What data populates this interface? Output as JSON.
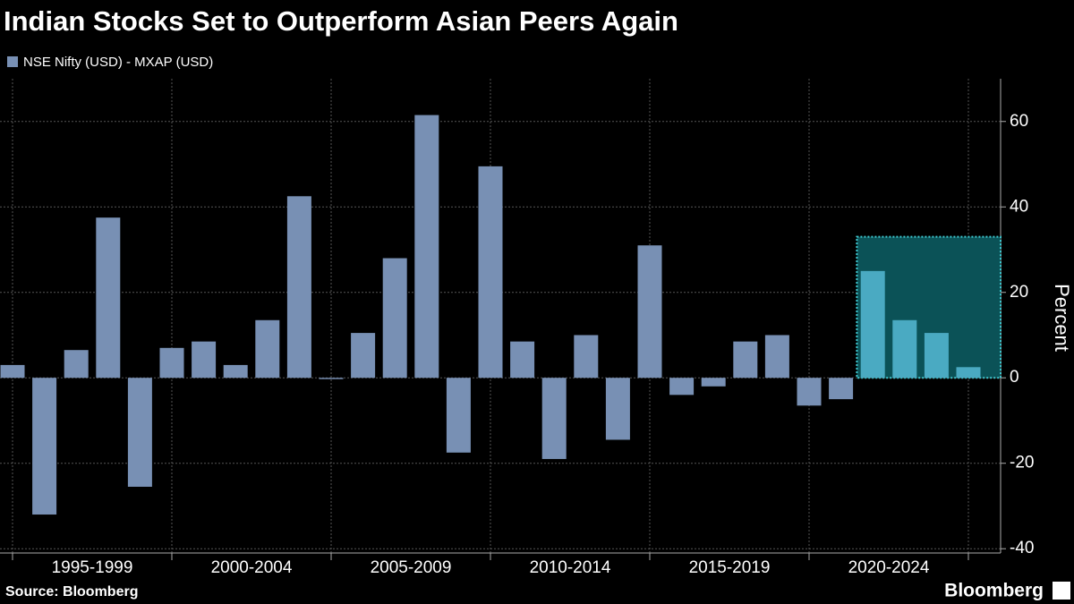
{
  "chart_data": {
    "type": "bar",
    "title": "Indian Stocks Set to Outperform Asian Peers Again",
    "y_axis_label": "Percent",
    "source": "Source: Bloomberg",
    "brand": "Bloomberg",
    "categories": [
      null,
      null,
      null,
      null,
      null,
      null,
      null,
      null,
      null,
      null,
      null,
      null,
      null,
      null,
      null,
      null,
      null,
      null,
      null,
      null,
      null,
      null,
      null,
      null,
      null,
      null,
      null,
      null,
      null,
      null,
      null
    ],
    "group_labels": [
      "1995-1999",
      "2000-2004",
      "2005-2009",
      "2010-2014",
      "2015-2019",
      "2020-2024"
    ],
    "series": [
      {
        "name": "NSE Nifty (USD) - MXAP (USD)",
        "color": "#7890b4",
        "values": [
          3,
          -32,
          6.5,
          37.5,
          -25.5,
          7,
          8.5,
          3,
          13.5,
          42.5,
          -0.3,
          10.5,
          28,
          61.5,
          -17.5,
          49.5,
          8.5,
          -19,
          10,
          -14.5,
          31,
          -4,
          -2,
          8.5,
          10,
          -6.5,
          -5,
          25,
          13.5,
          10.5,
          2.5
        ]
      }
    ],
    "highlight": {
      "from": 27,
      "to": 30,
      "ymax": 33,
      "color": "#0b5257",
      "border": "#3fc8d0",
      "bar_color": "#4aaac2"
    },
    "ylim": [
      -41,
      70
    ],
    "yticks": [
      -40,
      -20,
      0,
      20,
      40,
      60
    ],
    "grid": true
  }
}
